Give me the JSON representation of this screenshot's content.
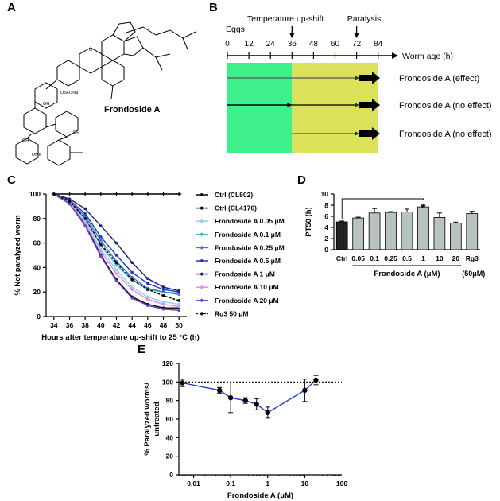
{
  "panels": {
    "a": {
      "letter": "A",
      "compound_label": "Frondoside A",
      "structure_labels": [
        "OSO3Na",
        "OMe",
        "OH",
        "O"
      ]
    },
    "b": {
      "letter": "B",
      "timepoints": [
        "0",
        "12",
        "24",
        "36",
        "48",
        "60",
        "72",
        "84"
      ],
      "axis_label": "Worm age (h)",
      "eggs_label": "Eggs",
      "upshift_label": "Temperature up-shift",
      "paralysis_label": "Paralysis",
      "rows": [
        {
          "label": "Frondoside A (effect)",
          "start_h": 0,
          "end_h": 72
        },
        {
          "label": "Frondoside A (no effect)",
          "start_h": 0,
          "end_h": 36
        },
        {
          "label": "Frondoside A (no effect)",
          "start_h": 36,
          "end_h": 72
        }
      ],
      "colors": {
        "green": "#3df08a",
        "yellow": "#dbe25a"
      }
    },
    "c": {
      "letter": "C"
    },
    "d": {
      "letter": "D",
      "significance": "*",
      "group_label": "Frondoside A (μM)",
      "rg3_note": "(50μM)"
    },
    "e": {
      "letter": "E"
    }
  },
  "chart_data": [
    {
      "panel": "C",
      "type": "line",
      "x": [
        34,
        36,
        38,
        40,
        42,
        44,
        46,
        48,
        50
      ],
      "xlim": [
        33,
        51
      ],
      "ylim": [
        0,
        100
      ],
      "xticks": [
        "34",
        "36",
        "38",
        "40",
        "42",
        "44",
        "46",
        "48",
        "50"
      ],
      "yticks": [
        "0",
        "20",
        "40",
        "60",
        "80",
        "100"
      ],
      "xlabel": "Hours after temperature up-shift to 25 °C (h)",
      "ylabel": "% Not paralyzed worm",
      "series": [
        {
          "name": "Ctrl (CL802)",
          "color": "#000000",
          "marker": "plus",
          "values": [
            100,
            100,
            100,
            100,
            100,
            100,
            100,
            100,
            100
          ]
        },
        {
          "name": "Ctrl (CL4176)",
          "color": "#000000",
          "values": [
            100,
            92,
            75,
            50,
            30,
            16,
            10,
            7,
            7
          ]
        },
        {
          "name": "Frondoside A 0.05 μM",
          "color": "#8fd0ef",
          "values": [
            100,
            92,
            78,
            55,
            38,
            24,
            16,
            12,
            10
          ]
        },
        {
          "name": "Frondoside A 0.1 μM",
          "color": "#35b7c9",
          "values": [
            100,
            93,
            80,
            58,
            42,
            30,
            22,
            20,
            19
          ]
        },
        {
          "name": "Frondoside A 0.25 μM",
          "color": "#3e79c8",
          "values": [
            100,
            94,
            82,
            62,
            45,
            32,
            23,
            20,
            18
          ]
        },
        {
          "name": "Frondoside A 0.5 μM",
          "color": "#1f36c0",
          "values": [
            100,
            95,
            84,
            65,
            50,
            36,
            27,
            22,
            20
          ]
        },
        {
          "name": "Frondoside A 1 μM",
          "color": "#1a237e",
          "values": [
            100,
            96,
            88,
            74,
            60,
            44,
            31,
            24,
            21
          ]
        },
        {
          "name": "Frondoside A 10 μM",
          "color": "#e58ce6",
          "values": [
            100,
            94,
            76,
            53,
            35,
            22,
            14,
            10,
            8
          ]
        },
        {
          "name": "Frondoside A 20 μM",
          "color": "#6a3fd4",
          "values": [
            100,
            92,
            74,
            49,
            29,
            15,
            9,
            6,
            5
          ]
        },
        {
          "name": "Rg3 50 μM",
          "color": "#000000",
          "dashed": true,
          "values": [
            100,
            94,
            80,
            59,
            44,
            30,
            22,
            17,
            13
          ]
        }
      ]
    },
    {
      "panel": "D",
      "type": "bar",
      "categories": [
        "Ctrl",
        "0.05",
        "0.1",
        "0.25",
        "0.5",
        "1",
        "10",
        "20",
        "Rg3"
      ],
      "values": [
        5.0,
        5.7,
        6.6,
        6.7,
        6.8,
        7.7,
        5.8,
        4.8,
        6.5
      ],
      "errors": [
        0.15,
        0.15,
        0.8,
        0.15,
        0.5,
        0.3,
        0.8,
        0.15,
        0.4
      ],
      "colors": [
        "#222222",
        "#b7c4bd",
        "#b7c4bd",
        "#b7c4bd",
        "#b7c4bd",
        "#b7c4bd",
        "#b7c4bd",
        "#b7c4bd",
        "#b7c4bd"
      ],
      "ylim": [
        0,
        10
      ],
      "yticks": [
        "0",
        "2",
        "4",
        "6",
        "8",
        "10"
      ],
      "ylabel": "PT50 (h)"
    },
    {
      "panel": "E",
      "type": "line",
      "xscale": "log",
      "x": [
        0.005,
        0.05,
        0.1,
        0.25,
        0.5,
        1,
        10,
        20
      ],
      "y": [
        99,
        91,
        83,
        80,
        76,
        67,
        91,
        102
      ],
      "yerr": [
        4,
        3,
        16,
        3,
        6,
        6,
        12,
        5
      ],
      "xlim": [
        0.004,
        100
      ],
      "ylim": [
        0,
        120
      ],
      "xticks": [
        "0.01",
        "0.1",
        "1",
        "10",
        "100"
      ],
      "yticks": [
        "0",
        "20",
        "40",
        "60",
        "80",
        "100",
        "120"
      ],
      "reference_y": 100,
      "xlabel": "Frondoside A (μM)",
      "ylabel": "% Paralyzed worms/ untreated",
      "color": "#1f3bd6"
    }
  ]
}
